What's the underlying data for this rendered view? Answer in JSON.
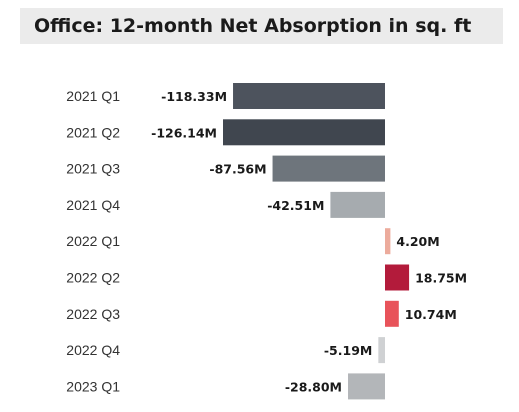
{
  "chart_data": {
    "type": "bar",
    "orientation": "horizontal",
    "title": "Office: 12-month Net Absorption in sq. ft",
    "categories": [
      "2021 Q1",
      "2021 Q2",
      "2021 Q3",
      "2021 Q4",
      "2022 Q1",
      "2022 Q2",
      "2022 Q3",
      "2022 Q4",
      "2023 Q1"
    ],
    "values": [
      -118.33,
      -126.14,
      -87.56,
      -42.51,
      4.2,
      18.75,
      10.74,
      -5.19,
      -28.8
    ],
    "value_labels": [
      "-118.33M",
      "-126.14M",
      "-87.56M",
      "-42.51M",
      "4.20M",
      "18.75M",
      "10.74M",
      "-5.19M",
      "-28.80M"
    ],
    "bar_colors": [
      "#4d535d",
      "#40464f",
      "#6e757c",
      "#a6abaf",
      "#ecab9c",
      "#b31b3b",
      "#e8535a",
      "#cfd1d3",
      "#b3b6b9"
    ],
    "xlabel": "",
    "ylabel": "",
    "legend": false,
    "grid": false
  }
}
